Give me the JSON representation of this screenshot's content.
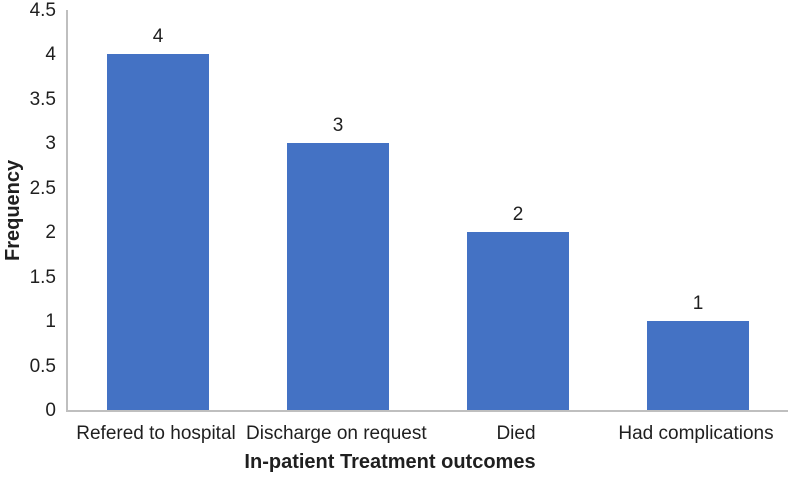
{
  "chart_data": {
    "type": "bar",
    "categories": [
      "Refered to hospital",
      "Discharge on request",
      "Died",
      "Had complications"
    ],
    "values": [
      4,
      3,
      2,
      1
    ],
    "data_labels": [
      "4",
      "3",
      "2",
      "1"
    ],
    "title": "",
    "xlabel": "In-patient Treatment outcomes",
    "ylabel": "Frequency",
    "ylim": [
      0,
      4.5
    ],
    "yticks": [
      "0",
      "0.5",
      "1",
      "1.5",
      "2",
      "2.5",
      "3",
      "3.5",
      "4",
      "4.5"
    ],
    "grid": false,
    "legend_position": "none",
    "bar_color": "#4472C4",
    "axis_color": "#BFBFBF",
    "text_color": "#1f1f1f"
  }
}
